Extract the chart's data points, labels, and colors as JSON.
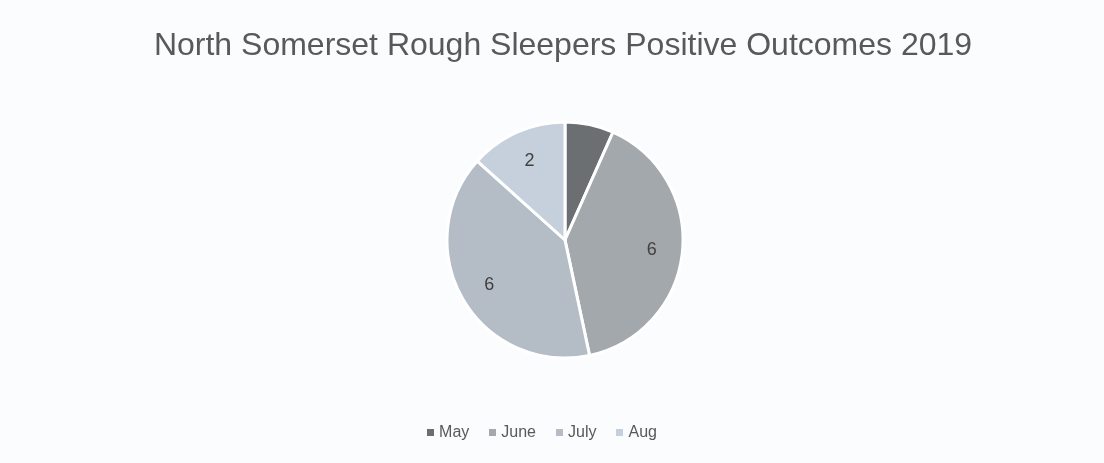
{
  "chart_data": {
    "type": "pie",
    "title": "North Somerset Rough Sleepers Positive Outcomes 2019",
    "categories": [
      "May",
      "June",
      "July",
      "Aug"
    ],
    "values": [
      1,
      6,
      6,
      2
    ],
    "colors": [
      "#6b6f72",
      "#a3a8ad",
      "#b4bcc6",
      "#c6d0dc"
    ],
    "value_labels": [
      null,
      "6",
      "6",
      "2"
    ],
    "legend": "bottom"
  }
}
